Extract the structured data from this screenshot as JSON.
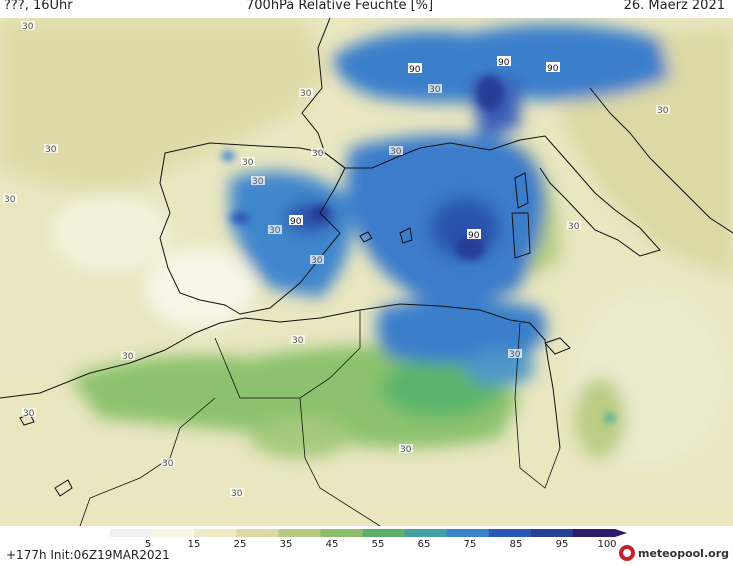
{
  "header": {
    "left": "???, 16Uhr",
    "title": "700hPa Relative Feuchte [%]",
    "date": "26. Maerz 2021"
  },
  "map": {
    "contour_labels": [
      "30",
      "90"
    ]
  },
  "legend": {
    "ticks": [
      "5",
      "15",
      "25",
      "35",
      "45",
      "55",
      "65",
      "75",
      "85",
      "95",
      "100"
    ],
    "colors": [
      "#f0f0f0",
      "#f7f6e4",
      "#eee9c6",
      "#dcd9a5",
      "#b9cb82",
      "#8cbd69",
      "#5cb06a",
      "#43a1a3",
      "#3a82cc",
      "#2957b8",
      "#263e96",
      "#2d1a6a"
    ]
  },
  "footer": {
    "run": "+177h  Init:06Z19MAR2021"
  },
  "logo": {
    "text": "meteopool.org"
  }
}
